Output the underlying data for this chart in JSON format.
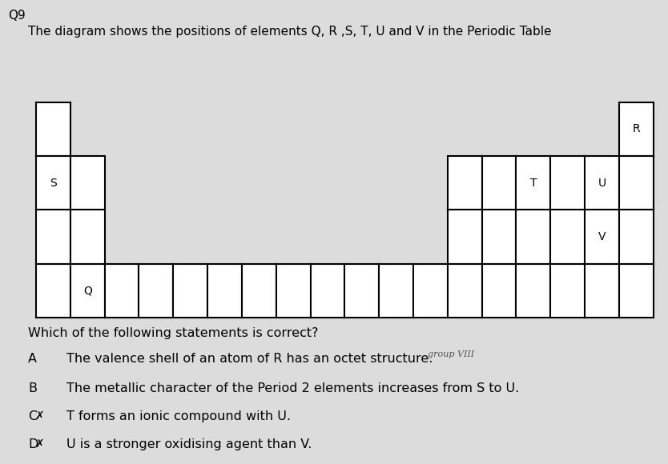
{
  "title": "The diagram shows the positions of elements Q, R ,S, T, U and V in the Periodic Table",
  "question_num": "Q9",
  "bg_color": "#dcdcdc",
  "table_bg": "#ffffff",
  "question": "Which of the following statements is correct?",
  "options": [
    {
      "label": "A",
      "text": "The valence shell of an atom of R has an octet structure.",
      "cross": false,
      "annotate": true,
      "annotation": "group VIII"
    },
    {
      "label": "B",
      "text": "The metallic character of the Period 2 elements increases from S to U.",
      "cross": false,
      "annotate": false
    },
    {
      "label": "C",
      "text": "T forms an ionic compound with U.",
      "cross": true,
      "annotate": false
    },
    {
      "label": "D",
      "text": "U is a stronger oxidising agent than V.",
      "cross": true,
      "annotate": false
    }
  ],
  "elements": {
    "R": {
      "col": 17,
      "row": 0
    },
    "S": {
      "col": 0,
      "row": 1
    },
    "T": {
      "col": 14,
      "row": 1
    },
    "U": {
      "col": 16,
      "row": 1
    },
    "V": {
      "col": 16,
      "row": 2
    },
    "Q": {
      "col": 1,
      "row": 3
    }
  },
  "period1_cols": [
    0,
    17
  ],
  "period2_cols": [
    0,
    1,
    12,
    13,
    14,
    15,
    16,
    17
  ],
  "period3_cols": [
    0,
    1,
    12,
    13,
    14,
    15,
    16,
    17
  ],
  "period4_cols": [
    0,
    1,
    2,
    3,
    4,
    5,
    6,
    7,
    8,
    9,
    10,
    11,
    12,
    13,
    14,
    15,
    16,
    17
  ],
  "table_color": "#000000",
  "table_lw": 1.5
}
